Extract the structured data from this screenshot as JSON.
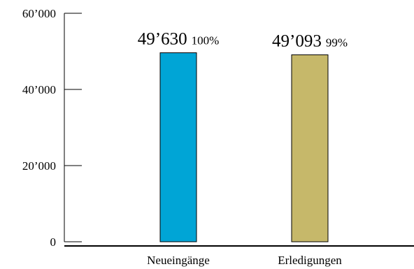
{
  "chart_data": {
    "type": "bar",
    "categories": [
      "Neueingänge",
      "Erledigungen"
    ],
    "values": [
      49630,
      49093
    ],
    "value_labels": [
      "49’630",
      "49’093"
    ],
    "percent_labels": [
      "100%",
      "99%"
    ],
    "bar_colors": [
      "#00a5d6",
      "#c6b86a"
    ],
    "ylim": [
      0,
      60000
    ],
    "yticks": [
      0,
      20000,
      40000,
      60000
    ],
    "ytick_labels": [
      "0",
      "20’000",
      "40’000",
      "60’000"
    ],
    "grid": false,
    "legend": "none"
  }
}
